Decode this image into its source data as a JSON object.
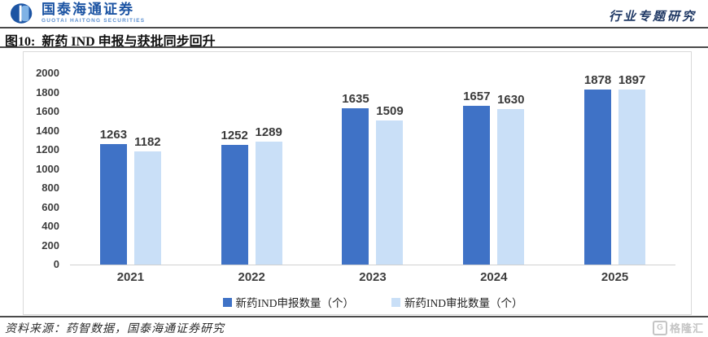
{
  "header": {
    "brand_cn": "国泰海通证券",
    "brand_en": "GUOTAI HAITONG SECURITIES",
    "report_type": "行业专题研究"
  },
  "figure": {
    "label": "图10:",
    "title": "新药 IND 申报与获批同步回升",
    "source": "资料来源：药智数据，国泰海通证券研究"
  },
  "watermark": {
    "icon_letter": "G",
    "text": "格隆汇"
  },
  "colors": {
    "brand_blue": "#1c54a3",
    "brand_blue_light": "#7fb2e5",
    "report_type_navy": "#1f3864",
    "bar_dark_blue": "#3f72c6",
    "bar_light_blue": "#c9dff7",
    "rule_dark": "#4a4a4a",
    "chart_border": "#d9d9d9"
  },
  "chart_data": {
    "type": "bar",
    "categories": [
      "2021",
      "2022",
      "2023",
      "2024",
      "2025"
    ],
    "series": [
      {
        "name": "新药IND申报数量（个）",
        "color": "#3f72c6",
        "values": [
          1263,
          1252,
          1635,
          1657,
          1878
        ]
      },
      {
        "name": "新药IND审批数量（个）",
        "color": "#c9dff7",
        "values": [
          1182,
          1289,
          1509,
          1630,
          1897
        ]
      }
    ],
    "title": "新药 IND 申报与获批同步回升",
    "xlabel": "",
    "ylabel": "",
    "ylim": [
      0,
      2000
    ],
    "ytick_step": 200,
    "grid": false,
    "legend_position": "bottom",
    "bar_value_labels": true
  }
}
